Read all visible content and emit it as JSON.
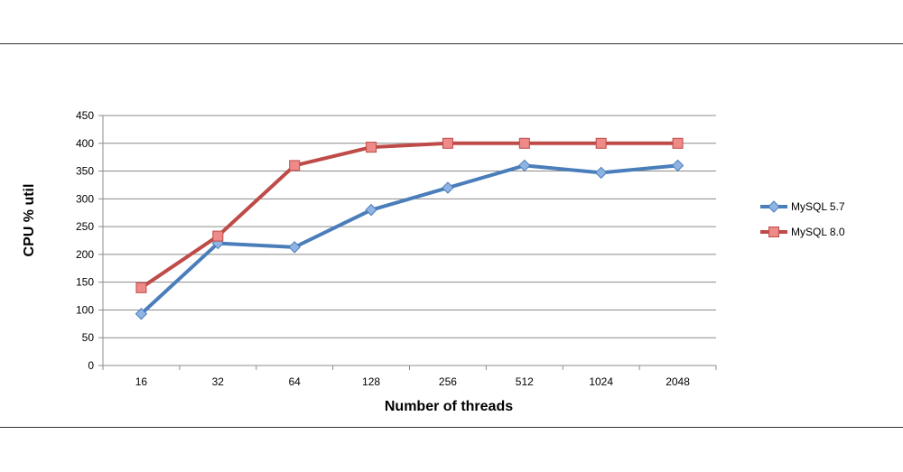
{
  "chart_data": {
    "type": "line",
    "title": "",
    "xlabel": "Number of threads",
    "ylabel": "CPU % util",
    "categories": [
      "16",
      "32",
      "64",
      "128",
      "256",
      "512",
      "1024",
      "2048"
    ],
    "ylim": [
      0,
      450
    ],
    "yticks": [
      0,
      50,
      100,
      150,
      200,
      250,
      300,
      350,
      400,
      450
    ],
    "grid": true,
    "legend_position": "right",
    "series": [
      {
        "name": "MySQL 5.7",
        "color": "#4a7ebb",
        "marker": "diamond",
        "values": [
          93,
          220,
          213,
          280,
          320,
          360,
          347,
          360
        ]
      },
      {
        "name": "MySQL 8.0",
        "color": "#be4b48",
        "marker": "square",
        "values": [
          140,
          233,
          360,
          393,
          400,
          400,
          400,
          400
        ]
      }
    ]
  }
}
